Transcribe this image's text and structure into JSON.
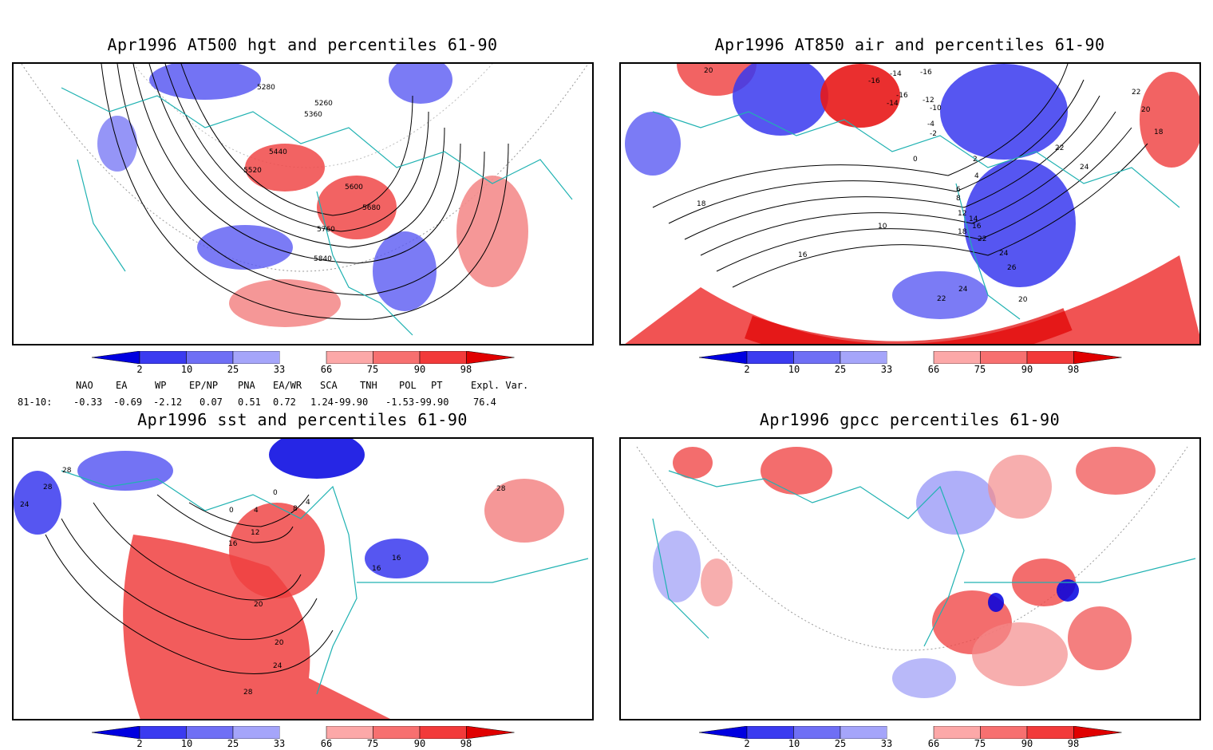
{
  "panels": [
    {
      "title": "Apr1996 AT500 hgt and percentiles 61-90",
      "contour_labels": [
        "5280",
        "5260",
        "5360",
        "5440",
        "5520",
        "5600",
        "5680",
        "5760",
        "5840"
      ]
    },
    {
      "title": "Apr1996 AT850 air and percentiles 61-90",
      "contour_labels": [
        "20",
        "-14",
        "-16",
        "-16",
        "-16",
        "-14",
        "-12",
        "-10",
        "-4",
        "-2",
        "0",
        "2",
        "4",
        "6",
        "8",
        "10",
        "12",
        "14",
        "16",
        "18",
        "16",
        "18",
        "22",
        "24",
        "26",
        "24",
        "22",
        "20",
        "24",
        "22",
        "20",
        "18",
        "22"
      ]
    },
    {
      "title": "Apr1996 sst and percentiles 61-90",
      "contour_labels": [
        "28",
        "28",
        "24",
        "0",
        "4",
        "0",
        "4",
        "8",
        "12",
        "16",
        "20",
        "20",
        "24",
        "28",
        "16",
        "16",
        "28"
      ]
    },
    {
      "title": "Apr1996 gpcc percentiles 61-90",
      "contour_labels": []
    }
  ],
  "colorbar": {
    "ticks": [
      "2",
      "10",
      "25",
      "33",
      "66",
      "75",
      "90",
      "98"
    ],
    "colors": [
      "#0000e0",
      "#3b3bf0",
      "#6f6ff5",
      "#a5a5fa",
      "#ffffff",
      "#fca8a8",
      "#f77070",
      "#f23a3a",
      "#e00000"
    ]
  },
  "indices": {
    "headers": [
      "NAO",
      "EA",
      "WP",
      "EP/NP",
      "PNA",
      "EA/WR",
      "SCA",
      "TNH",
      "POL",
      "PT",
      "Expl. Var."
    ],
    "row_label": "81-10:",
    "values": [
      "-0.33",
      "-0.69",
      "-2.12",
      "0.07",
      "0.51",
      "0.72",
      "1.24",
      "-99.90",
      "-1.53",
      "-99.90",
      "76.4"
    ]
  },
  "colors": {
    "coastline": "#20b2b2",
    "contour": "#000000",
    "positive": "#f04040",
    "negative": "#4040f0"
  }
}
